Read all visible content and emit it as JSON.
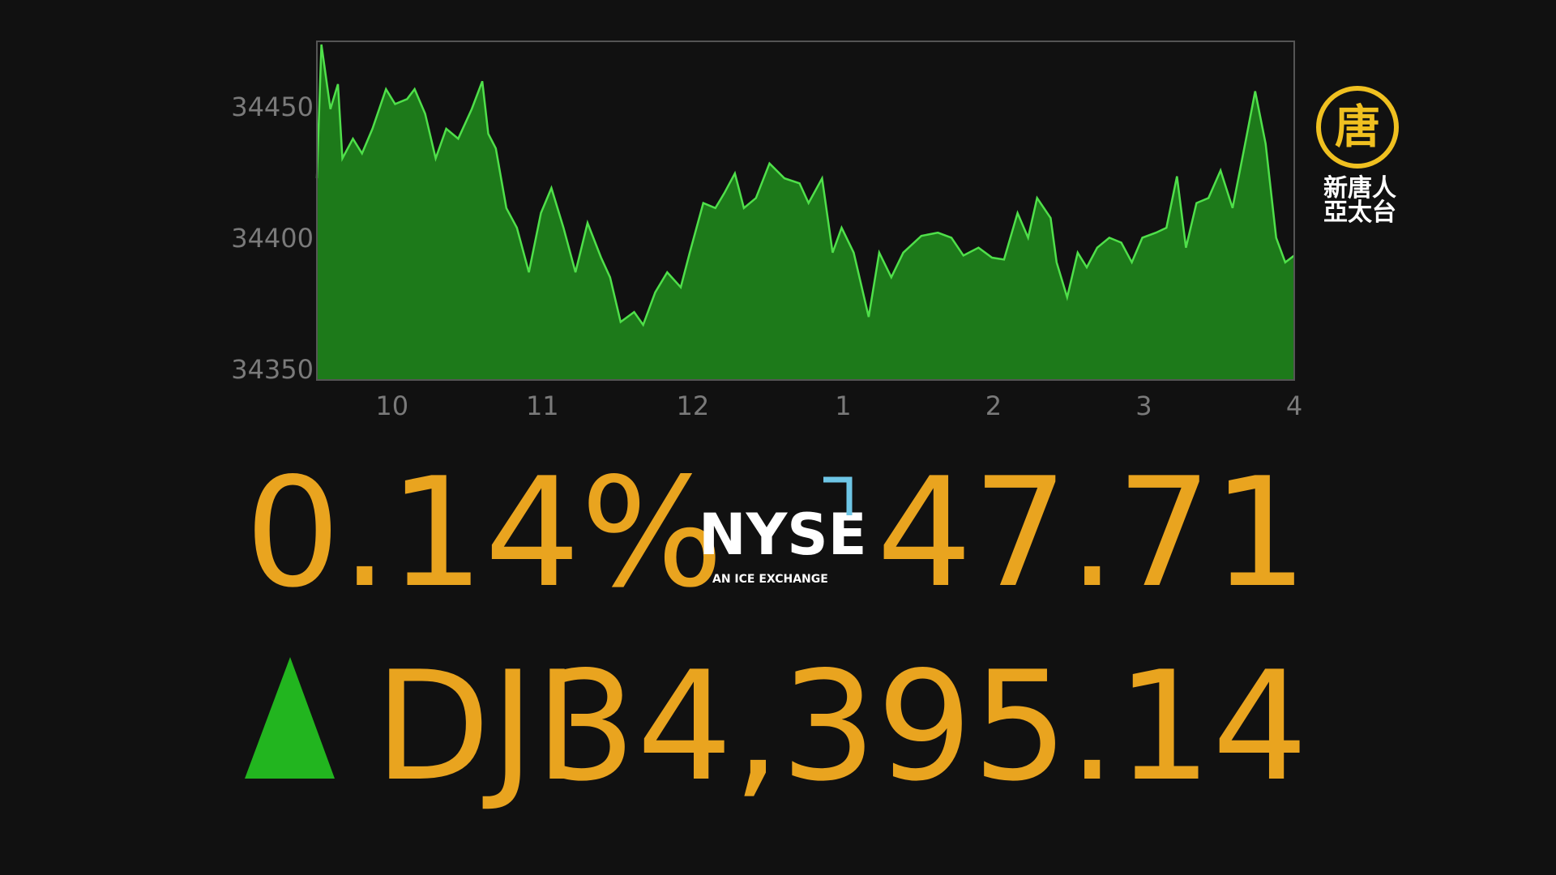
{
  "chart_data": {
    "type": "area",
    "x": [
      9.5,
      9.53,
      9.59,
      9.64,
      9.67,
      9.74,
      9.8,
      9.87,
      9.96,
      10.02,
      10.1,
      10.15,
      10.22,
      10.29,
      10.36,
      10.44,
      10.53,
      10.6,
      10.64,
      10.69,
      10.76,
      10.83,
      10.91,
      10.99,
      11.06,
      11.14,
      11.22,
      11.3,
      11.39,
      11.45,
      11.52,
      11.61,
      11.67,
      11.75,
      11.83,
      11.92,
      11.98,
      12.07,
      12.15,
      12.21,
      12.28,
      12.34,
      12.42,
      12.51,
      12.61,
      12.71,
      12.77,
      12.86,
      12.93,
      12.99,
      13.07,
      13.17,
      13.24,
      13.32,
      13.4,
      13.52,
      13.63,
      13.72,
      13.8,
      13.9,
      13.99,
      14.07,
      14.16,
      14.23,
      14.29,
      14.38,
      14.42,
      14.49,
      14.56,
      14.62,
      14.69,
      14.77,
      14.85,
      14.92,
      14.99,
      15.08,
      15.15,
      15.22,
      15.28,
      15.35,
      15.43,
      15.51,
      15.59,
      15.68,
      15.74,
      15.81,
      15.88,
      15.94,
      16
    ],
    "values": [
      34422.8,
      34473.8,
      34449.2,
      34458.7,
      34430.4,
      34437.9,
      34432.3,
      34441.7,
      34456.8,
      34451.1,
      34453,
      34456.8,
      34447.4,
      34430.4,
      34441.7,
      34437.9,
      34449.2,
      34459.8,
      34439.8,
      34434.2,
      34411.5,
      34404,
      34387,
      34409.6,
      34419.1,
      34404,
      34387,
      34405.8,
      34392.6,
      34385.1,
      34368.1,
      34371.9,
      34367,
      34379.4,
      34387,
      34381.3,
      34394.5,
      34413.4,
      34411.5,
      34417.2,
      34424.7,
      34411.5,
      34415.3,
      34428.5,
      34422.8,
      34420.9,
      34413.4,
      34422.8,
      34394.5,
      34404,
      34394.5,
      34370,
      34394.5,
      34385.1,
      34394.5,
      34400.9,
      34402.1,
      34400.2,
      34393.4,
      34396.4,
      34392.6,
      34391.9,
      34409.6,
      34400.2,
      34415.3,
      34407.7,
      34390.8,
      34377.5,
      34394.5,
      34388.9,
      34396.4,
      34400.2,
      34398.3,
      34390.8,
      34400.2,
      34402.1,
      34404,
      34423.6,
      34396.4,
      34413.4,
      34415.3,
      34425.8,
      34411.5,
      34437.9,
      34456,
      34436,
      34400.2,
      34390.8,
      34393.4
    ],
    "color": "#4fe04a",
    "fill": "#1d7a1a",
    "xlim": [
      9.5,
      16
    ],
    "xticks": [
      10,
      11,
      12,
      {
        "value": 13,
        "label": "1"
      },
      {
        "value": 14,
        "label": "2"
      },
      {
        "value": 15,
        "label": "3"
      },
      {
        "value": 16,
        "label": "4"
      }
    ],
    "ylim": [
      34346,
      34475
    ],
    "yticks": [
      34350,
      34400,
      34450
    ]
  },
  "ticker": {
    "change_pct": "0.14%",
    "change": "47.71",
    "symbol": "DJI",
    "last": "34,395.14"
  },
  "exchange": {
    "name": "NYSE",
    "tagline": "AN ICE EXCHANGE"
  },
  "station": {
    "mark": "唐",
    "line1": "新唐人",
    "line2": "亞太台"
  }
}
